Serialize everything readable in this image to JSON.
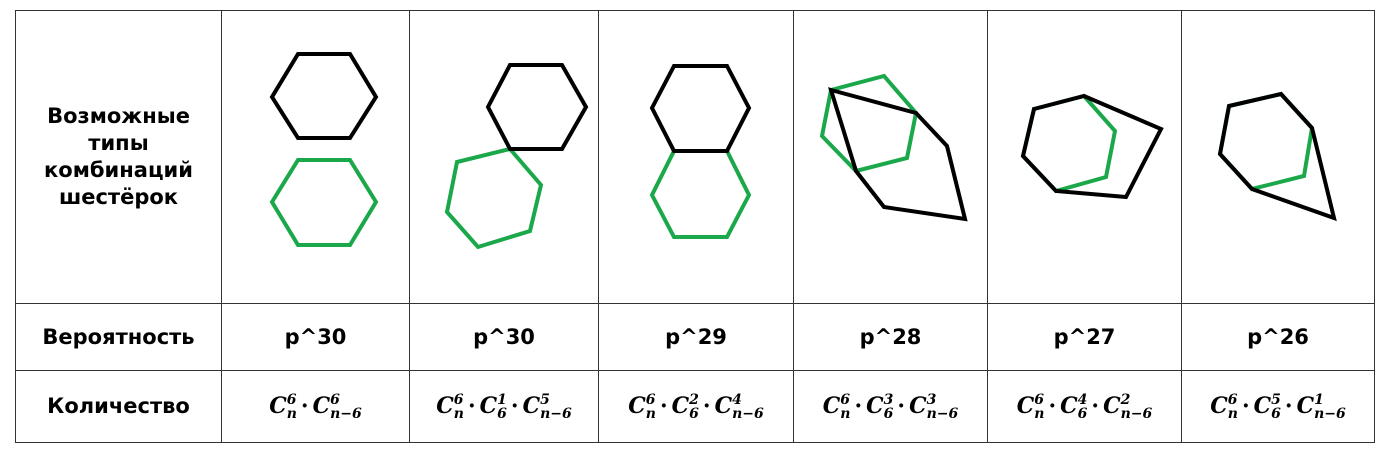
{
  "row_labels": {
    "types": [
      "Возможные",
      "типы",
      "комбинаций",
      "шестёрок"
    ],
    "probability": "Вероятность",
    "count": "Количество"
  },
  "colors": {
    "black_hex": "#000000",
    "green_hex": "#1aa84a"
  },
  "columns": [
    {
      "probability": "p^30",
      "count_terms": [
        {
          "c": "C",
          "sup": "6",
          "sub": "n"
        },
        {
          "c": "C",
          "sup": "6",
          "sub": "n−6"
        }
      ]
    },
    {
      "probability": "p^30",
      "count_terms": [
        {
          "c": "C",
          "sup": "6",
          "sub": "n"
        },
        {
          "c": "C",
          "sup": "1",
          "sub": "6"
        },
        {
          "c": "C",
          "sup": "5",
          "sub": "n−6"
        }
      ]
    },
    {
      "probability": "p^29",
      "count_terms": [
        {
          "c": "C",
          "sup": "6",
          "sub": "n"
        },
        {
          "c": "C",
          "sup": "2",
          "sub": "6"
        },
        {
          "c": "C",
          "sup": "4",
          "sub": "n−6"
        }
      ]
    },
    {
      "probability": "p^28",
      "count_terms": [
        {
          "c": "C",
          "sup": "6",
          "sub": "n"
        },
        {
          "c": "C",
          "sup": "3",
          "sub": "6"
        },
        {
          "c": "C",
          "sup": "3",
          "sub": "n−6"
        }
      ]
    },
    {
      "probability": "p^27",
      "count_terms": [
        {
          "c": "C",
          "sup": "6",
          "sub": "n"
        },
        {
          "c": "C",
          "sup": "4",
          "sub": "6"
        },
        {
          "c": "C",
          "sup": "2",
          "sub": "n−6"
        }
      ]
    },
    {
      "probability": "p^26",
      "count_terms": [
        {
          "c": "C",
          "sup": "6",
          "sub": "n"
        },
        {
          "c": "C",
          "sup": "5",
          "sub": "6"
        },
        {
          "c": "C",
          "sup": "1",
          "sub": "n−6"
        }
      ]
    }
  ]
}
